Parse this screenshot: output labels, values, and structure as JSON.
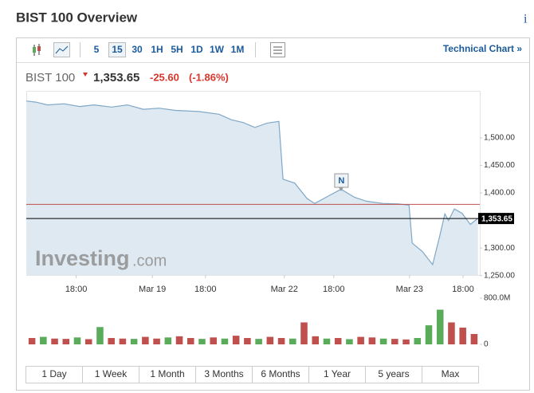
{
  "header": {
    "title": "BIST 100 Overview",
    "info": "i"
  },
  "toolbar": {
    "intervals": [
      "5",
      "15",
      "30",
      "1H",
      "5H",
      "1D",
      "1W",
      "1M"
    ],
    "active": 1,
    "technical_chart": "Technical Chart »"
  },
  "quote": {
    "name": "BIST 100",
    "price": "1,353.65",
    "change": "-25.60",
    "change_pct": "(-1.86%)"
  },
  "chart_data": {
    "type": "area",
    "color": "#7fa8c8",
    "fill": "#dfe9f1",
    "x": [
      0,
      2.1,
      4.7,
      8.3,
      11.8,
      14.9,
      18.8,
      22.3,
      25.8,
      29.3,
      32.9,
      38.1,
      42.5,
      45.2,
      47.8,
      50.4,
      53.1,
      55.7,
      56.6,
      59.2,
      61.9,
      63.6,
      66.3,
      69.4,
      72.4,
      75.0,
      78.6,
      82.1,
      84.4,
      85.1,
      87.3,
      89.6,
      91.2,
      92.3,
      93.1,
      94.4,
      96.1,
      97.9,
      99.6
    ],
    "values": [
      1567,
      1565,
      1560,
      1562,
      1557,
      1560,
      1556,
      1560,
      1552,
      1554,
      1550,
      1548,
      1543,
      1533,
      1528,
      1519,
      1527,
      1530,
      1425,
      1418,
      1390,
      1381,
      1393,
      1407,
      1392,
      1385,
      1381,
      1380,
      1378,
      1309,
      1294,
      1270,
      1323,
      1362,
      1350,
      1371,
      1363,
      1343,
      1354
    ],
    "xlim": [
      0,
      100
    ],
    "ylim": [
      1251,
      1584
    ],
    "xticks": [
      {
        "value": 11,
        "label": "18:00"
      },
      {
        "value": 27.8,
        "label": "Mar 19"
      },
      {
        "value": 39.5,
        "label": "18:00"
      },
      {
        "value": 56.9,
        "label": "Mar 22"
      },
      {
        "value": 67.8,
        "label": "18:00"
      },
      {
        "value": 84.5,
        "label": "Mar 23"
      },
      {
        "value": 96.3,
        "label": "18:00"
      }
    ],
    "yticks": [
      {
        "value": 1250,
        "label": "1,250.00"
      },
      {
        "value": 1300,
        "label": "1,300.00"
      },
      {
        "value": 1400,
        "label": "1,400.00"
      },
      {
        "value": 1450,
        "label": "1,450.00"
      },
      {
        "value": 1500,
        "label": "1,500.00"
      }
    ],
    "prev_close": 1379.25,
    "prev_close_color": "#c0504d",
    "last": {
      "value": 1353.65,
      "label": "1,353.65"
    },
    "annotations": [
      {
        "text": "N",
        "x": 69.4
      }
    ],
    "volume": {
      "ylim": [
        0,
        800
      ],
      "yticks": [
        0,
        {
          "value": 800,
          "label": "800.0M"
        }
      ],
      "values": [
        110,
        130,
        100,
        95,
        120,
        90,
        300,
        110,
        100,
        95,
        130,
        100,
        120,
        140,
        110,
        95,
        120,
        100,
        150,
        110,
        95,
        130,
        110,
        100,
        380,
        140,
        100,
        110,
        90,
        130,
        120,
        100,
        95,
        85,
        110,
        330,
        600,
        380,
        290,
        180
      ],
      "colors": [
        "#c0504d",
        "#5aab5a",
        "#c0504d",
        "#c0504d",
        "#5aab5a",
        "#c0504d",
        "#5aab5a",
        "#c0504d",
        "#c0504d",
        "#5aab5a",
        "#c0504d",
        "#c0504d",
        "#5aab5a",
        "#c0504d",
        "#c0504d",
        "#5aab5a",
        "#c0504d",
        "#5aab5a",
        "#c0504d",
        "#c0504d",
        "#5aab5a",
        "#c0504d",
        "#c0504d",
        "#5aab5a",
        "#c0504d",
        "#c0504d",
        "#5aab5a",
        "#c0504d",
        "#5aab5a",
        "#c0504d",
        "#c0504d",
        "#5aab5a",
        "#c0504d",
        "#c0504d",
        "#5aab5a",
        "#5aab5a",
        "#5aab5a",
        "#c0504d",
        "#c0504d",
        "#c0504d"
      ]
    }
  },
  "logo": {
    "brand": "Investing",
    "suffix": ".com"
  },
  "ranges": [
    "1 Day",
    "1 Week",
    "1 Month",
    "3 Months",
    "6 Months",
    "1 Year",
    "5 years",
    "Max"
  ]
}
